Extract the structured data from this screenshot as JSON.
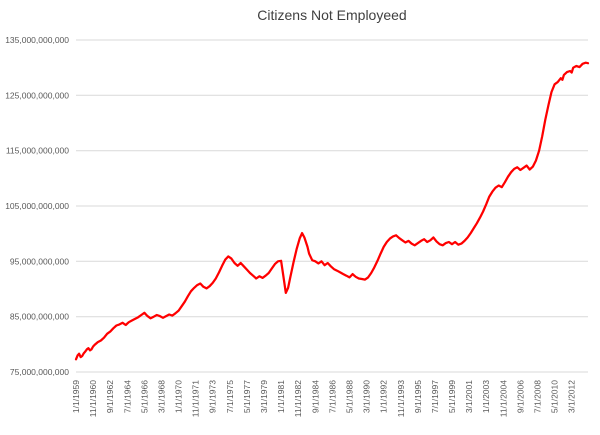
{
  "chart_data": {
    "type": "line",
    "title": "Citizens Not Employeed",
    "xlabel": "",
    "ylabel": "",
    "grid": true,
    "legend_position": "none",
    "line_color": "#FF0000",
    "gridline_color": "#D9D9D9",
    "label_color": "#595959",
    "title_color": "#404040",
    "background_color": "#FFFFFF",
    "ylim": [
      75000000000,
      135000000000
    ],
    "y_ticks": [
      {
        "value": 75000000000,
        "label": "75,000,000,000"
      },
      {
        "value": 85000000000,
        "label": "85,000,000,000"
      },
      {
        "value": 95000000000,
        "label": "95,000,000,000"
      },
      {
        "value": 105000000000,
        "label": "105,000,000,000"
      },
      {
        "value": 115000000000,
        "label": "115,000,000,000"
      },
      {
        "value": 125000000000,
        "label": "125,000,000,000"
      },
      {
        "value": 135000000000,
        "label": "135,000,000,000"
      }
    ],
    "x_unit": "months since 1/1/1959",
    "x_tick_interval_months": 22,
    "x_tick_labels": [
      "1/1/1959",
      "11/1/1960",
      "9/1/1962",
      "7/1/1964",
      "5/1/1966",
      "3/1/1968",
      "1/1/1970",
      "11/1/1971",
      "9/1/1973",
      "7/1/1975",
      "5/1/1977",
      "3/1/1979",
      "1/1/1981",
      "11/1/1982",
      "9/1/1984",
      "7/1/1986",
      "5/1/1988",
      "3/1/1990",
      "1/1/1992",
      "11/1/1993",
      "9/1/1995",
      "7/1/1997",
      "5/1/1999",
      "3/1/2001",
      "1/1/2003",
      "11/1/2004",
      "9/1/2006",
      "7/1/2008",
      "5/1/2010",
      "3/1/2012"
    ],
    "values_scale": 1000000000,
    "series": [
      {
        "name": "Citizens Not Employeed",
        "points": [
          [
            0,
            77.3
          ],
          [
            2,
            78.0
          ],
          [
            4,
            78.3
          ],
          [
            6,
            77.7
          ],
          [
            8,
            77.9
          ],
          [
            10,
            78.4
          ],
          [
            12,
            78.7
          ],
          [
            14,
            79.1
          ],
          [
            16,
            79.3
          ],
          [
            18,
            78.9
          ],
          [
            20,
            79.1
          ],
          [
            22,
            79.6
          ],
          [
            24,
            79.9
          ],
          [
            28,
            80.4
          ],
          [
            32,
            80.7
          ],
          [
            36,
            81.2
          ],
          [
            40,
            81.9
          ],
          [
            44,
            82.3
          ],
          [
            48,
            82.9
          ],
          [
            52,
            83.4
          ],
          [
            56,
            83.6
          ],
          [
            60,
            83.9
          ],
          [
            64,
            83.5
          ],
          [
            68,
            84.0
          ],
          [
            72,
            84.3
          ],
          [
            76,
            84.6
          ],
          [
            80,
            84.9
          ],
          [
            84,
            85.3
          ],
          [
            88,
            85.7
          ],
          [
            92,
            85.1
          ],
          [
            96,
            84.7
          ],
          [
            100,
            85.0
          ],
          [
            104,
            85.3
          ],
          [
            108,
            85.1
          ],
          [
            112,
            84.8
          ],
          [
            116,
            85.1
          ],
          [
            120,
            85.4
          ],
          [
            124,
            85.2
          ],
          [
            128,
            85.6
          ],
          [
            132,
            86.1
          ],
          [
            136,
            86.9
          ],
          [
            140,
            87.7
          ],
          [
            144,
            88.7
          ],
          [
            148,
            89.6
          ],
          [
            152,
            90.2
          ],
          [
            156,
            90.7
          ],
          [
            160,
            91.0
          ],
          [
            164,
            90.4
          ],
          [
            168,
            90.1
          ],
          [
            172,
            90.5
          ],
          [
            176,
            91.1
          ],
          [
            180,
            91.9
          ],
          [
            184,
            93.0
          ],
          [
            188,
            94.2
          ],
          [
            192,
            95.3
          ],
          [
            196,
            95.9
          ],
          [
            200,
            95.5
          ],
          [
            204,
            94.7
          ],
          [
            208,
            94.2
          ],
          [
            212,
            94.7
          ],
          [
            216,
            94.1
          ],
          [
            220,
            93.5
          ],
          [
            224,
            92.9
          ],
          [
            228,
            92.4
          ],
          [
            232,
            91.9
          ],
          [
            236,
            92.3
          ],
          [
            240,
            92.0
          ],
          [
            244,
            92.4
          ],
          [
            248,
            92.9
          ],
          [
            252,
            93.7
          ],
          [
            256,
            94.5
          ],
          [
            260,
            95.0
          ],
          [
            264,
            95.1
          ],
          [
            267,
            92.3
          ],
          [
            270,
            89.3
          ],
          [
            273,
            90.2
          ],
          [
            276,
            92.2
          ],
          [
            280,
            94.8
          ],
          [
            284,
            97.2
          ],
          [
            288,
            99.2
          ],
          [
            291,
            100.1
          ],
          [
            294,
            99.3
          ],
          [
            298,
            97.6
          ],
          [
            300,
            96.4
          ],
          [
            304,
            95.2
          ],
          [
            308,
            95.0
          ],
          [
            312,
            94.6
          ],
          [
            316,
            95.0
          ],
          [
            320,
            94.3
          ],
          [
            324,
            94.7
          ],
          [
            328,
            94.1
          ],
          [
            332,
            93.6
          ],
          [
            336,
            93.3
          ],
          [
            340,
            93.0
          ],
          [
            344,
            92.7
          ],
          [
            348,
            92.4
          ],
          [
            352,
            92.1
          ],
          [
            356,
            92.7
          ],
          [
            360,
            92.2
          ],
          [
            364,
            91.9
          ],
          [
            368,
            91.8
          ],
          [
            372,
            91.7
          ],
          [
            376,
            92.1
          ],
          [
            380,
            92.9
          ],
          [
            384,
            93.9
          ],
          [
            388,
            95.1
          ],
          [
            392,
            96.4
          ],
          [
            396,
            97.6
          ],
          [
            400,
            98.5
          ],
          [
            404,
            99.1
          ],
          [
            408,
            99.5
          ],
          [
            412,
            99.7
          ],
          [
            416,
            99.2
          ],
          [
            420,
            98.8
          ],
          [
            424,
            98.4
          ],
          [
            428,
            98.7
          ],
          [
            432,
            98.2
          ],
          [
            436,
            97.9
          ],
          [
            440,
            98.3
          ],
          [
            444,
            98.7
          ],
          [
            448,
            99.0
          ],
          [
            452,
            98.5
          ],
          [
            456,
            98.8
          ],
          [
            460,
            99.3
          ],
          [
            464,
            98.6
          ],
          [
            468,
            98.1
          ],
          [
            472,
            97.9
          ],
          [
            476,
            98.3
          ],
          [
            480,
            98.5
          ],
          [
            484,
            98.1
          ],
          [
            488,
            98.5
          ],
          [
            492,
            98.0
          ],
          [
            496,
            98.2
          ],
          [
            500,
            98.7
          ],
          [
            504,
            99.3
          ],
          [
            508,
            100.1
          ],
          [
            512,
            101.0
          ],
          [
            516,
            101.9
          ],
          [
            520,
            102.9
          ],
          [
            524,
            104.0
          ],
          [
            528,
            105.3
          ],
          [
            532,
            106.7
          ],
          [
            536,
            107.6
          ],
          [
            540,
            108.3
          ],
          [
            544,
            108.7
          ],
          [
            548,
            108.4
          ],
          [
            552,
            109.3
          ],
          [
            556,
            110.3
          ],
          [
            560,
            111.1
          ],
          [
            564,
            111.7
          ],
          [
            568,
            112.0
          ],
          [
            572,
            111.5
          ],
          [
            576,
            111.9
          ],
          [
            580,
            112.3
          ],
          [
            584,
            111.6
          ],
          [
            588,
            112.1
          ],
          [
            592,
            113.2
          ],
          [
            596,
            115.0
          ],
          [
            600,
            117.6
          ],
          [
            604,
            120.6
          ],
          [
            608,
            123.2
          ],
          [
            612,
            125.6
          ],
          [
            616,
            127.0
          ],
          [
            620,
            127.4
          ],
          [
            624,
            128.1
          ],
          [
            626,
            127.8
          ],
          [
            628,
            128.7
          ],
          [
            632,
            129.2
          ],
          [
            636,
            129.4
          ],
          [
            638,
            129.1
          ],
          [
            640,
            130.0
          ],
          [
            644,
            130.3
          ],
          [
            648,
            130.1
          ],
          [
            652,
            130.7
          ],
          [
            656,
            130.9
          ],
          [
            659,
            130.8
          ]
        ]
      }
    ]
  }
}
